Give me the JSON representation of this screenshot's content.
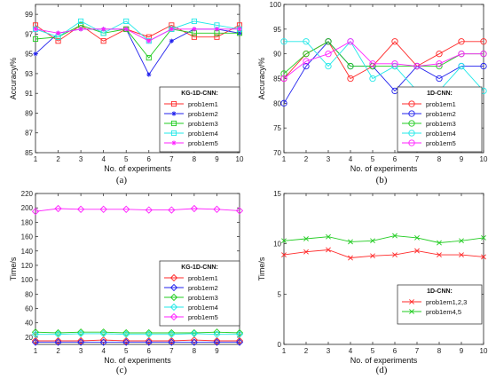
{
  "chart_data": [
    {
      "type": "line",
      "caption": "(a)",
      "xlabel": "No. of experiments",
      "ylabel": "Accuracy/%",
      "xlim": [
        1,
        10
      ],
      "ylim": [
        85,
        100
      ],
      "xticks": [
        1,
        2,
        3,
        4,
        5,
        6,
        7,
        8,
        9,
        10
      ],
      "yticks": [
        85,
        87,
        89,
        91,
        93,
        95,
        97,
        99
      ],
      "legend_title": "KG-1D-CNN:",
      "legend_position": "lower-right",
      "x": [
        1,
        2,
        3,
        4,
        5,
        6,
        7,
        8,
        9,
        10
      ],
      "series": [
        {
          "name": "prob1em1",
          "color": "#ff2a2a",
          "marker": "square",
          "values": [
            97.9,
            96.3,
            97.9,
            96.3,
            97.5,
            96.7,
            97.9,
            96.7,
            96.7,
            97.9
          ]
        },
        {
          "name": "prob1em2",
          "color": "#2222ee",
          "marker": "asterisk",
          "values": [
            95.0,
            97.1,
            97.5,
            97.5,
            97.5,
            92.9,
            96.3,
            97.5,
            97.5,
            97.1
          ]
        },
        {
          "name": "prob1em3",
          "color": "#22cc22",
          "marker": "square",
          "values": [
            96.5,
            96.7,
            97.9,
            97.1,
            97.5,
            94.6,
            97.5,
            97.1,
            97.1,
            97.1
          ]
        },
        {
          "name": "prob1em4",
          "color": "#22e8e8",
          "marker": "square",
          "values": [
            97.5,
            96.7,
            98.3,
            97.1,
            98.3,
            96.3,
            97.5,
            98.3,
            97.9,
            97.5
          ]
        },
        {
          "name": "prob1em5",
          "color": "#ff22ff",
          "marker": "asterisk",
          "values": [
            97.5,
            97.1,
            97.5,
            97.5,
            97.5,
            96.3,
            97.5,
            97.5,
            97.5,
            97.5
          ]
        }
      ]
    },
    {
      "type": "line",
      "caption": "(b)",
      "xlabel": "No. of experiments",
      "ylabel": "Accuracy/%",
      "xlim": [
        1,
        10
      ],
      "ylim": [
        70,
        100
      ],
      "xticks": [
        1,
        2,
        3,
        4,
        5,
        6,
        7,
        8,
        9,
        10
      ],
      "yticks": [
        70,
        75,
        80,
        85,
        90,
        95,
        100
      ],
      "legend_title": "1D-CNN:",
      "legend_position": "lower-right",
      "x": [
        1,
        2,
        3,
        4,
        5,
        6,
        7,
        8,
        9,
        10
      ],
      "series": [
        {
          "name": "prob1em1",
          "color": "#ff2a2a",
          "marker": "circle",
          "values": [
            85.0,
            90.0,
            92.5,
            85.0,
            87.5,
            92.5,
            87.5,
            90.0,
            92.5,
            92.5
          ]
        },
        {
          "name": "prob1em2",
          "color": "#2222ee",
          "marker": "circle",
          "values": [
            80.0,
            87.5,
            92.5,
            87.5,
            87.5,
            82.5,
            87.5,
            85.0,
            87.5,
            87.5
          ]
        },
        {
          "name": "prob1em3",
          "color": "#22cc22",
          "marker": "circle",
          "values": [
            86.0,
            90.0,
            92.5,
            87.5,
            87.5,
            87.5,
            87.5,
            87.5,
            90.0,
            90.0
          ]
        },
        {
          "name": "prob1em4",
          "color": "#22e8e8",
          "marker": "circle",
          "values": [
            92.5,
            92.5,
            87.5,
            92.5,
            85.0,
            87.5,
            82.5,
            82.5,
            87.5,
            82.5
          ]
        },
        {
          "name": "prob1em5",
          "color": "#ff22ff",
          "marker": "circle",
          "values": [
            85.0,
            88.5,
            90.0,
            92.5,
            88.0,
            88.0,
            87.5,
            88.0,
            90.0,
            90.0
          ]
        }
      ]
    },
    {
      "type": "line",
      "caption": "(c)",
      "xlabel": "No. of experiments",
      "ylabel": "Time/s",
      "xlim": [
        1,
        10
      ],
      "ylim": [
        10,
        220
      ],
      "xticks": [
        1,
        2,
        3,
        4,
        5,
        6,
        7,
        8,
        9
      ],
      "yticks": [
        20,
        40,
        60,
        80,
        100,
        120,
        140,
        160,
        180,
        200,
        220
      ],
      "legend_title": "KG-1D-CNN:",
      "legend_position": "lower-right",
      "x": [
        1,
        2,
        3,
        4,
        5,
        6,
        7,
        8,
        9,
        10
      ],
      "series": [
        {
          "name": "prob1em1",
          "color": "#ff2a2a",
          "marker": "diamond",
          "values": [
            15,
            15,
            15,
            16,
            15,
            15,
            15,
            16,
            15,
            15
          ]
        },
        {
          "name": "prob1em2",
          "color": "#2222ee",
          "marker": "diamond",
          "values": [
            13,
            13,
            13,
            13,
            13,
            13,
            13,
            13,
            13,
            13
          ]
        },
        {
          "name": "prob1em3",
          "color": "#22cc22",
          "marker": "diamond",
          "values": [
            27,
            26,
            27,
            27,
            26,
            26,
            26,
            26,
            27,
            26
          ]
        },
        {
          "name": "prob1em4",
          "color": "#22e8e8",
          "marker": "diamond",
          "values": [
            24,
            24,
            25,
            25,
            24,
            24,
            24,
            25,
            24,
            24
          ]
        },
        {
          "name": "prob1em5",
          "color": "#ff22ff",
          "marker": "diamond",
          "values": [
            195,
            199,
            198,
            198,
            198,
            197,
            197,
            199,
            198,
            196
          ]
        }
      ]
    },
    {
      "type": "line",
      "caption": "(d)",
      "xlabel": "No. of experiments",
      "ylabel": "Time/s",
      "xlim": [
        1,
        10
      ],
      "ylim": [
        0,
        15
      ],
      "xticks": [
        1,
        2,
        3,
        4,
        5,
        6,
        7,
        8,
        9,
        10
      ],
      "yticks": [
        0,
        5,
        10,
        15
      ],
      "legend_title": "1D-CNN:",
      "legend_position": "lower-right",
      "x": [
        1,
        2,
        3,
        4,
        5,
        6,
        7,
        8,
        9,
        10
      ],
      "series": [
        {
          "name": "prob1em1,2,3",
          "color": "#ff2a2a",
          "marker": "x",
          "values": [
            8.9,
            9.2,
            9.4,
            8.6,
            8.8,
            8.9,
            9.3,
            8.9,
            8.9,
            8.7
          ]
        },
        {
          "name": "prob1em4,5",
          "color": "#22cc22",
          "marker": "x",
          "values": [
            10.3,
            10.5,
            10.7,
            10.2,
            10.3,
            10.8,
            10.6,
            10.1,
            10.3,
            10.6
          ]
        }
      ]
    }
  ]
}
